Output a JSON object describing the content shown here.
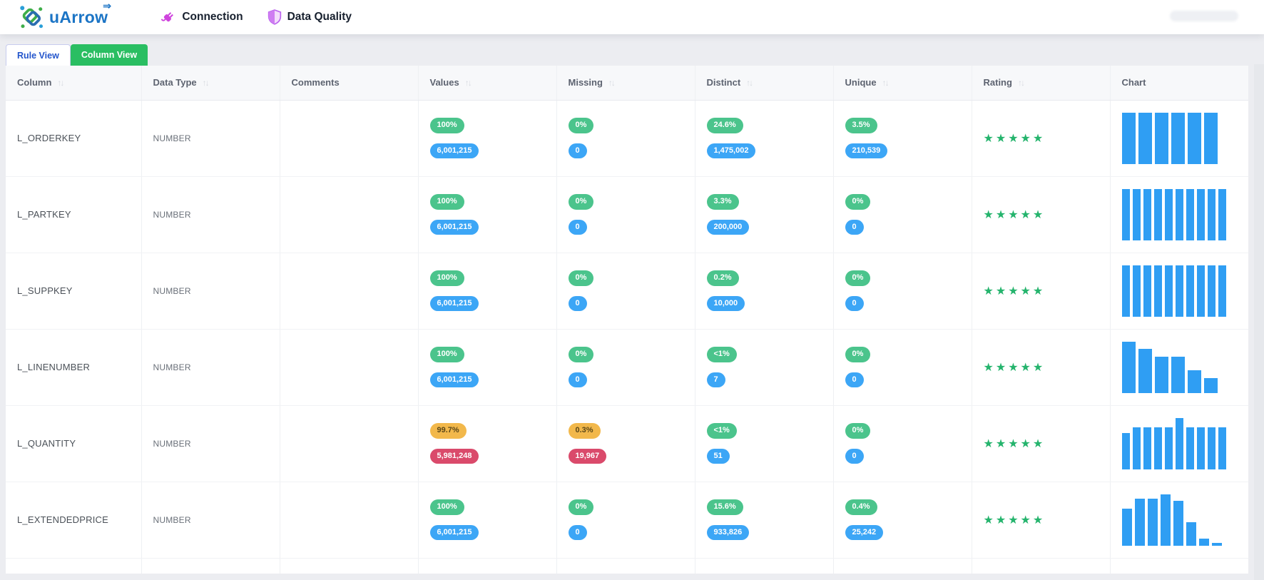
{
  "brand": {
    "name": "uArrow",
    "arrow_glyph": "⇒"
  },
  "nav": {
    "connection_label": "Connection",
    "data_quality_label": "Data Quality"
  },
  "tabs": {
    "rule_view": "Rule View",
    "column_view": "Column View"
  },
  "table": {
    "headers": [
      {
        "label": "Column",
        "sortable": true
      },
      {
        "label": "Data Type",
        "sortable": true
      },
      {
        "label": "Comments",
        "sortable": false
      },
      {
        "label": "Values",
        "sortable": true
      },
      {
        "label": "Missing",
        "sortable": true
      },
      {
        "label": "Distinct",
        "sortable": true
      },
      {
        "label": "Unique",
        "sortable": true
      },
      {
        "label": "Rating",
        "sortable": true
      },
      {
        "label": "Chart",
        "sortable": false
      }
    ],
    "rows": [
      {
        "column": "L_ORDERKEY",
        "data_type": "NUMBER",
        "comments": "",
        "values": {
          "pct": "100%",
          "pct_level": "success",
          "count": "6,001,215",
          "count_level": "info"
        },
        "missing": {
          "pct": "0%",
          "pct_level": "success",
          "count": "0",
          "count_level": "info"
        },
        "distinct": {
          "pct": "24.6%",
          "pct_level": "success",
          "count": "1,475,002",
          "count_level": "info"
        },
        "unique": {
          "pct": "3.5%",
          "pct_level": "success",
          "count": "210,539",
          "count_level": "info"
        },
        "rating": 5,
        "chart": [
          100,
          100,
          100,
          100,
          100,
          100
        ]
      },
      {
        "column": "L_PARTKEY",
        "data_type": "NUMBER",
        "comments": "",
        "values": {
          "pct": "100%",
          "pct_level": "success",
          "count": "6,001,215",
          "count_level": "info"
        },
        "missing": {
          "pct": "0%",
          "pct_level": "success",
          "count": "0",
          "count_level": "info"
        },
        "distinct": {
          "pct": "3.3%",
          "pct_level": "success",
          "count": "200,000",
          "count_level": "info"
        },
        "unique": {
          "pct": "0%",
          "pct_level": "success",
          "count": "0",
          "count_level": "info"
        },
        "rating": 5,
        "chart": [
          100,
          100,
          100,
          100,
          100,
          100,
          100,
          100,
          100,
          100
        ]
      },
      {
        "column": "L_SUPPKEY",
        "data_type": "NUMBER",
        "comments": "",
        "values": {
          "pct": "100%",
          "pct_level": "success",
          "count": "6,001,215",
          "count_level": "info"
        },
        "missing": {
          "pct": "0%",
          "pct_level": "success",
          "count": "0",
          "count_level": "info"
        },
        "distinct": {
          "pct": "0.2%",
          "pct_level": "success",
          "count": "10,000",
          "count_level": "info"
        },
        "unique": {
          "pct": "0%",
          "pct_level": "success",
          "count": "0",
          "count_level": "info"
        },
        "rating": 5,
        "chart": [
          100,
          100,
          100,
          100,
          100,
          100,
          100,
          100,
          100,
          100
        ]
      },
      {
        "column": "L_LINENUMBER",
        "data_type": "NUMBER",
        "comments": "",
        "values": {
          "pct": "100%",
          "pct_level": "success",
          "count": "6,001,215",
          "count_level": "info"
        },
        "missing": {
          "pct": "0%",
          "pct_level": "success",
          "count": "0",
          "count_level": "info"
        },
        "distinct": {
          "pct": "<1%",
          "pct_level": "success",
          "count": "7",
          "count_level": "info"
        },
        "unique": {
          "pct": "0%",
          "pct_level": "success",
          "count": "0",
          "count_level": "info"
        },
        "rating": 5,
        "chart": [
          100,
          86,
          71,
          71,
          44,
          29
        ]
      },
      {
        "column": "L_QUANTITY",
        "data_type": "NUMBER",
        "comments": "",
        "values": {
          "pct": "99.7%",
          "pct_level": "warn",
          "count": "5,981,248",
          "count_level": "danger"
        },
        "missing": {
          "pct": "0.3%",
          "pct_level": "warn",
          "count": "19,967",
          "count_level": "danger"
        },
        "distinct": {
          "pct": "<1%",
          "pct_level": "success",
          "count": "51",
          "count_level": "info"
        },
        "unique": {
          "pct": "0%",
          "pct_level": "success",
          "count": "0",
          "count_level": "info"
        },
        "rating": 5,
        "chart": [
          71,
          82,
          82,
          82,
          82,
          100,
          82,
          82,
          82,
          82
        ]
      },
      {
        "column": "L_EXTENDEDPRICE",
        "data_type": "NUMBER",
        "comments": "",
        "values": {
          "pct": "100%",
          "pct_level": "success",
          "count": "6,001,215",
          "count_level": "info"
        },
        "missing": {
          "pct": "0%",
          "pct_level": "success",
          "count": "0",
          "count_level": "info"
        },
        "distinct": {
          "pct": "15.6%",
          "pct_level": "success",
          "count": "933,826",
          "count_level": "info"
        },
        "unique": {
          "pct": "0.4%",
          "pct_level": "success",
          "count": "25,242",
          "count_level": "info"
        },
        "rating": 5,
        "chart": [
          72,
          92,
          92,
          100,
          88,
          46,
          14,
          6
        ]
      }
    ]
  },
  "icons": {
    "sort_glyph": "↑↓",
    "star_glyph": "★",
    "logo": "uarrow-knot-icon",
    "connection": "plug-icon",
    "data_quality": "shield-icon"
  },
  "colors": {
    "badge_success": "#4bc48c",
    "badge_info": "#3ca6f6",
    "badge_warn": "#f2b84b",
    "badge_danger": "#da4a6b",
    "star": "#25b46d",
    "bar": "#2f9ef3",
    "tab_active_bg": "#2abe62",
    "brand_blue": "#1b74c5",
    "plug_magenta": "#cf44dd",
    "shield_violet": "#bb63ee"
  }
}
